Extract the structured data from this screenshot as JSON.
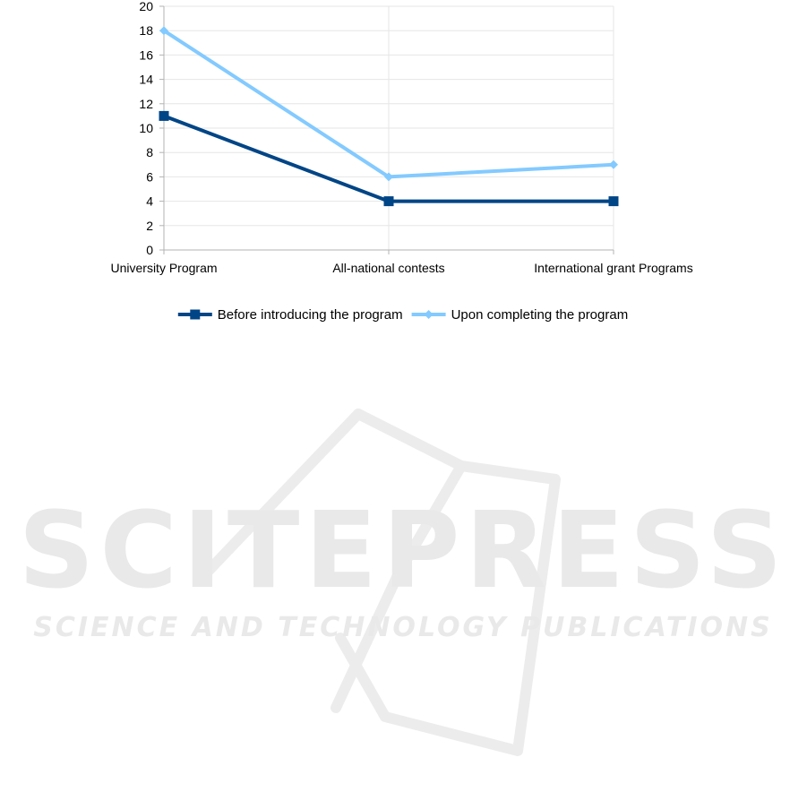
{
  "chart_data": {
    "type": "line",
    "title": "",
    "xlabel": "",
    "ylabel": "",
    "categories": [
      "University Program",
      "All-national contests",
      "International grant Programs"
    ],
    "yticks": [
      "0",
      "2",
      "4",
      "6",
      "8",
      "10",
      "12",
      "14",
      "16",
      "18",
      "20"
    ],
    "ylim": [
      0,
      20
    ],
    "grid": true,
    "legend_position": "bottom",
    "series": [
      {
        "name": "Before introducing the program",
        "values": [
          11,
          4,
          4
        ],
        "color": "#004586",
        "marker": "square"
      },
      {
        "name": "Upon completing the program",
        "values": [
          18,
          6,
          7
        ],
        "color": "#83caff",
        "marker": "diamond"
      }
    ]
  },
  "watermark": {
    "title": "SCITEPRESS",
    "subtitle": "SCIENCE AND TECHNOLOGY PUBLICATIONS",
    "color": "#e9e9e9"
  }
}
